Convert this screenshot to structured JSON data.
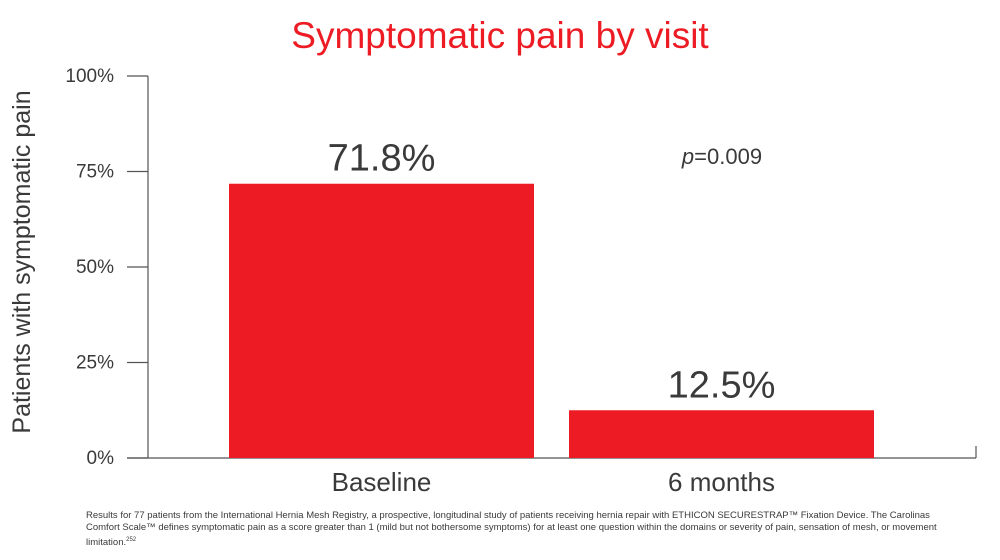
{
  "chart_data": {
    "type": "bar",
    "title": "Symptomatic pain by visit",
    "ylabel": "Patients with symptomatic pain",
    "xlabel": "",
    "categories": [
      "Baseline",
      "6 months"
    ],
    "values": [
      71.8,
      12.5
    ],
    "value_labels": [
      "71.8%",
      "12.5%"
    ],
    "ylim": [
      0,
      100
    ],
    "yticks": [
      0,
      25,
      50,
      75,
      100
    ],
    "ytick_labels": [
      "0%",
      "25%",
      "50%",
      "75%",
      "100%"
    ],
    "annotation": {
      "italic": "p",
      "text": "=0.009"
    },
    "grid": false,
    "colors": {
      "bar": "#ed1c24",
      "title": "#ed1c24",
      "axis": "#555555"
    }
  },
  "footnote": "Results for 77 patients from the International Hernia Mesh Registry, a prospective, longitudinal study of patients receiving hernia repair with ETHICON SECURESTRAP™ Fixation Device. The Carolinas Comfort Scale™ defines symptomatic pain as a score greater than 1 (mild but not bothersome symptoms) for at least one question within the domains or severity of pain, sensation of mesh, or movement limitation.",
  "footnote_ref": "252"
}
